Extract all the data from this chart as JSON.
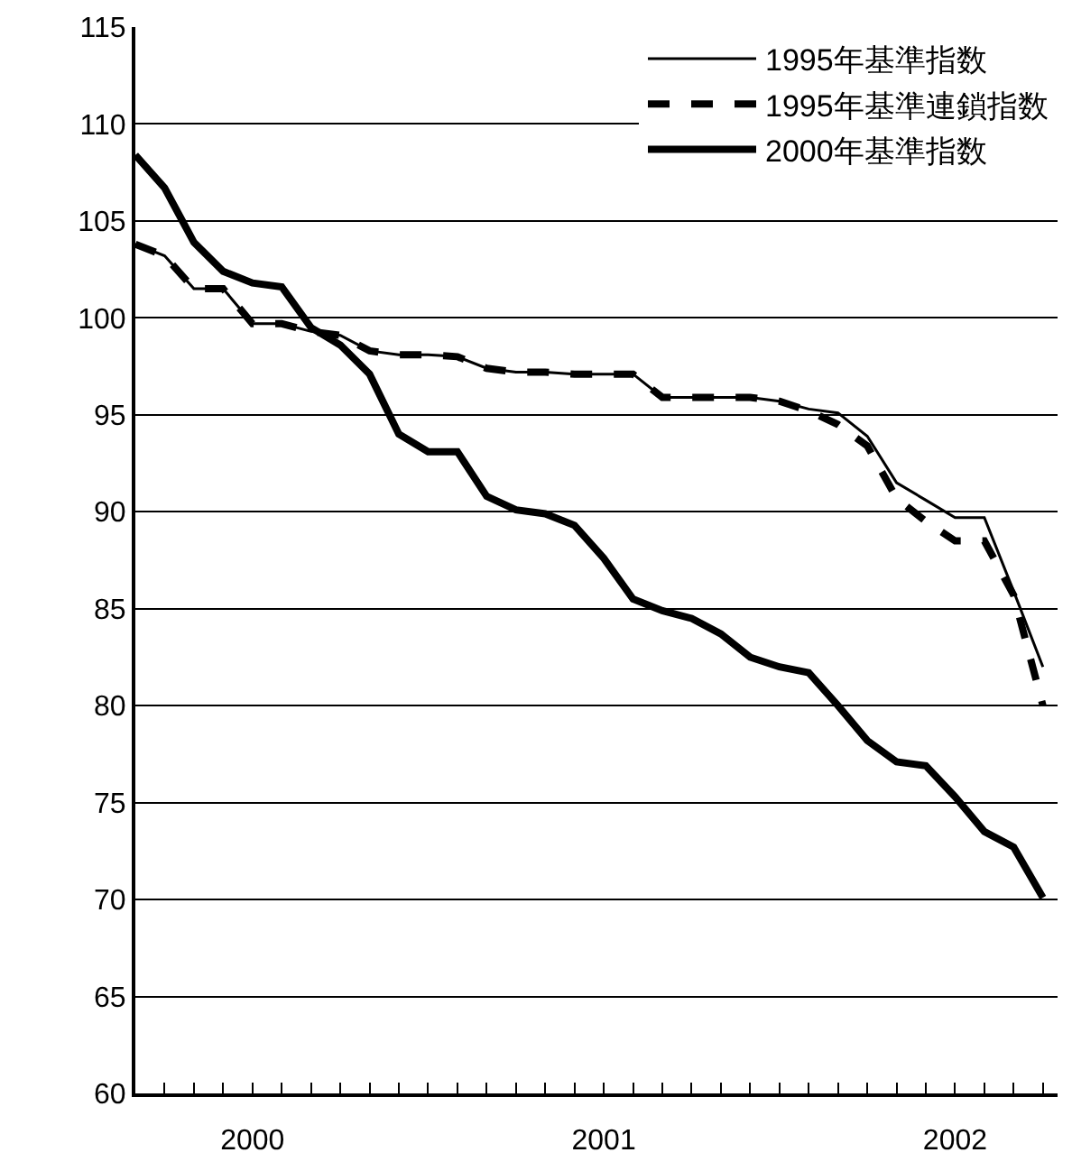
{
  "chart_data": {
    "type": "line",
    "categories": [
      null,
      null,
      null,
      null,
      "2000",
      null,
      null,
      null,
      null,
      null,
      null,
      null,
      null,
      null,
      null,
      null,
      "2001",
      null,
      null,
      null,
      null,
      null,
      null,
      null,
      null,
      null,
      null,
      null,
      "2002",
      null,
      null,
      null
    ],
    "series": [
      {
        "name": "1995年基準指数",
        "color": "#000000",
        "line_style": "solid",
        "values": [
          103.8,
          103.2,
          101.5,
          101.5,
          99.7,
          99.7,
          99.3,
          99.1,
          98.3,
          98.1,
          98.1,
          98.0,
          97.4,
          97.2,
          97.2,
          97.1,
          97.1,
          97.1,
          95.9,
          95.9,
          95.9,
          95.9,
          95.7,
          95.3,
          95.1,
          93.9,
          91.5,
          90.6,
          89.7,
          89.7,
          85.9,
          82.0
        ]
      },
      {
        "name": "1995年基準連鎖指数",
        "color": "#000000",
        "line_style": "dashed",
        "values": [
          103.8,
          103.2,
          101.5,
          101.5,
          99.7,
          99.7,
          99.3,
          99.1,
          98.3,
          98.1,
          98.1,
          98.0,
          97.4,
          97.2,
          97.2,
          97.1,
          97.1,
          97.1,
          95.9,
          95.9,
          95.9,
          95.9,
          95.7,
          95.2,
          94.5,
          93.4,
          90.7,
          89.5,
          88.5,
          88.5,
          85.7,
          80.0
        ]
      },
      {
        "name": "2000年基準指数",
        "color": "#000000",
        "line_style": "solid",
        "values": [
          108.4,
          106.7,
          103.9,
          102.4,
          101.8,
          101.6,
          99.5,
          98.6,
          97.1,
          94.0,
          93.1,
          93.1,
          90.8,
          90.1,
          89.9,
          89.3,
          87.6,
          85.5,
          84.9,
          84.5,
          83.7,
          82.5,
          82.0,
          81.7,
          80.0,
          78.2,
          77.1,
          76.9,
          75.3,
          73.5,
          72.7,
          70.1
        ]
      }
    ],
    "ylim": [
      60,
      115
    ],
    "yticks": [
      60,
      65,
      70,
      75,
      80,
      85,
      90,
      95,
      100,
      105,
      110,
      115
    ],
    "grid": "y",
    "legend": "top right",
    "marker": "none"
  }
}
